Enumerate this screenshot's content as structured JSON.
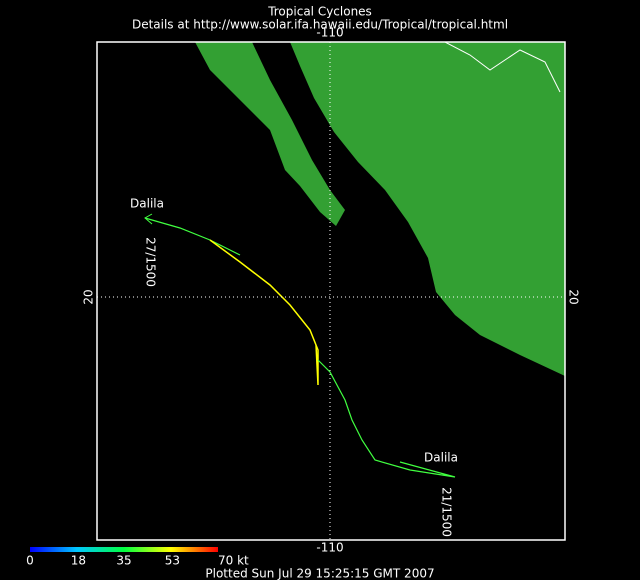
{
  "header": {
    "title": "Tropical Cyclones",
    "subtitle": "Details at http://www.solar.ifa.hawaii.edu/Tropical/tropical.html"
  },
  "graticule": {
    "lon": [
      -110
    ],
    "lat": [
      20
    ]
  },
  "storm": {
    "name_start": "Dalila",
    "time_start": "27/1500",
    "name_end": "Dalila",
    "time_end": "21/1500"
  },
  "colorbar": {
    "range": [
      0,
      70
    ],
    "ticks": [
      0,
      18,
      35,
      53,
      {
        "value": 70,
        "label": "70 kt"
      }
    ]
  },
  "footer": {
    "plotted": "Plotted Sun Jul 29 15:25:15 GMT 2007"
  }
}
